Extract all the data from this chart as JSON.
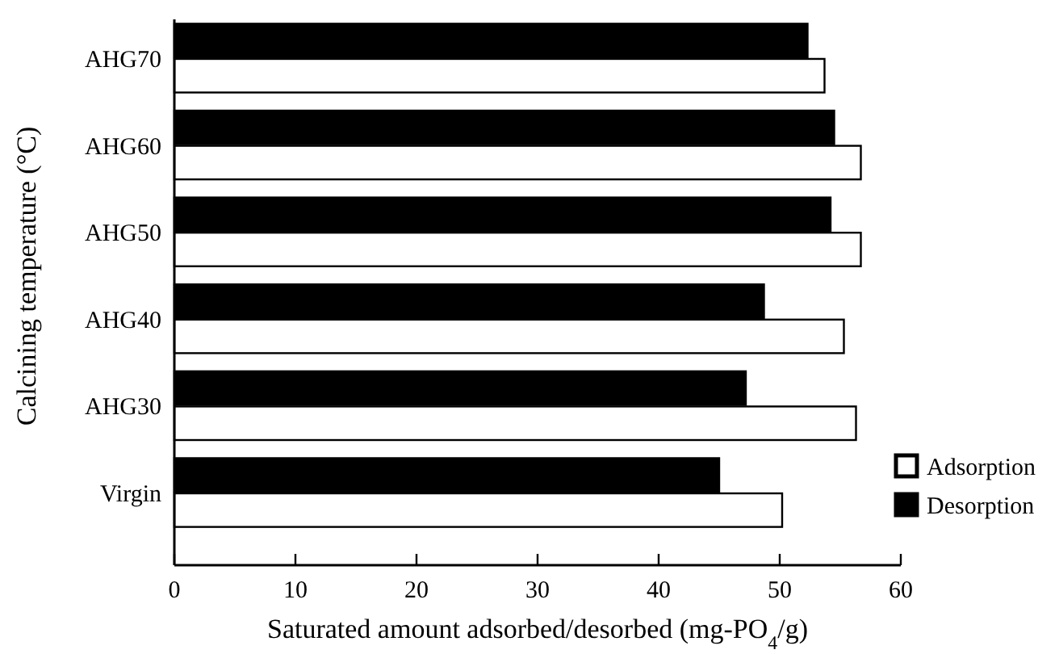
{
  "chart_data": {
    "type": "bar",
    "orientation": "horizontal",
    "xlabel": "Saturated amount adsorbed/desorbed (mg-PO$_{4}$/g)",
    "ylabel": "Calcining temperature (°C)",
    "categories": [
      "AHG70",
      "AHG60",
      "AHG50",
      "AHG40",
      "AHG30",
      "Virgin"
    ],
    "series": [
      {
        "name": "Desorption",
        "color": "#000000",
        "values": [
          52.3,
          54.5,
          54.2,
          48.7,
          47.2,
          45.0
        ]
      },
      {
        "name": "Adsorption",
        "color": "#ffffff",
        "values": [
          53.7,
          56.7,
          56.7,
          55.3,
          56.3,
          50.2
        ]
      }
    ],
    "xlim": [
      0,
      60
    ],
    "xticks": [
      0,
      10,
      20,
      30,
      40,
      50,
      60
    ],
    "legend": "bottom right",
    "grid": false
  }
}
